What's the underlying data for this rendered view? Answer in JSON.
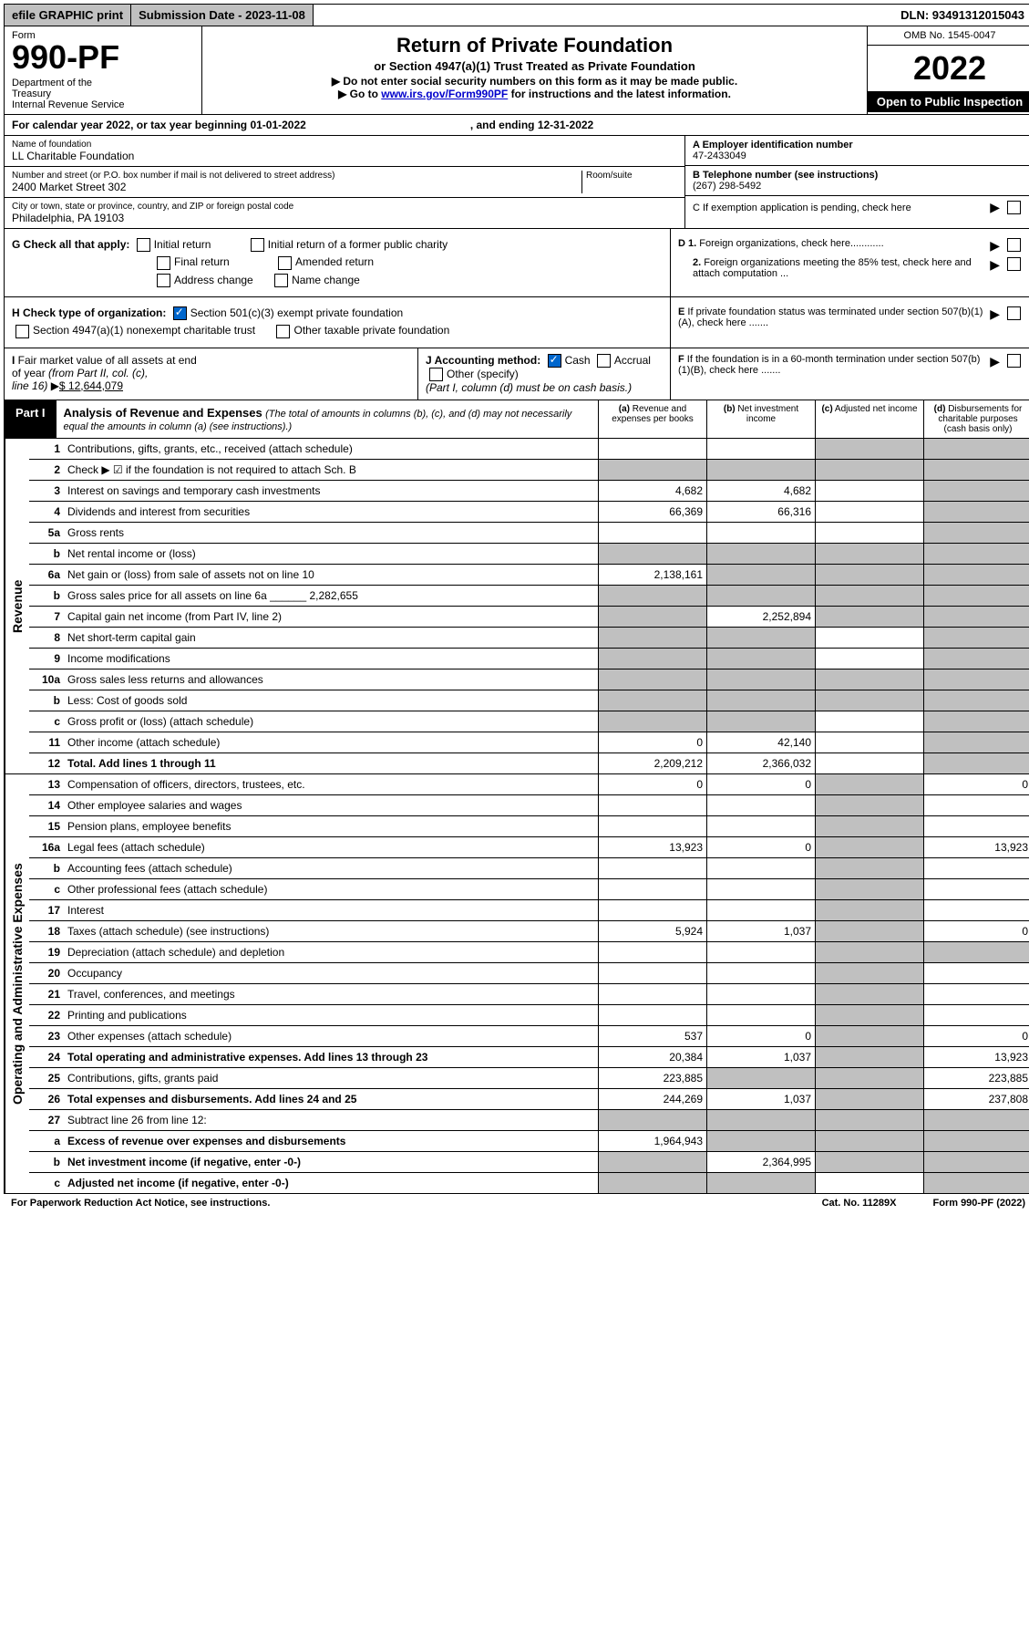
{
  "topbar": {
    "efile": "efile GRAPHIC print",
    "subdate_lbl": "Submission Date - 2023-11-08",
    "dln": "DLN: 93491312015043"
  },
  "header": {
    "form_lbl": "Form",
    "form_num": "990-PF",
    "dept": "Department of the Treasury\nInternal Revenue Service",
    "title": "Return of Private Foundation",
    "subtitle": "or Section 4947(a)(1) Trust Treated as Private Foundation",
    "note1": "▶ Do not enter social security numbers on this form as it may be made public.",
    "note2_pre": "▶ Go to ",
    "note2_link": "www.irs.gov/Form990PF",
    "note2_post": " for instructions and the latest information.",
    "omb": "OMB No. 1545-0047",
    "year": "2022",
    "inspect": "Open to Public Inspection"
  },
  "calyear": {
    "pre": "For calendar year 2022, or tax year beginning 01-01-2022",
    "mid": ", and ending 12-31-2022"
  },
  "info": {
    "name_lbl": "Name of foundation",
    "name": "LL Charitable Foundation",
    "addr_lbl": "Number and street (or P.O. box number if mail is not delivered to street address)",
    "addr": "2400 Market Street 302",
    "room_lbl": "Room/suite",
    "city_lbl": "City or town, state or province, country, and ZIP or foreign postal code",
    "city": "Philadelphia, PA  19103",
    "ein_lbl": "A Employer identification number",
    "ein": "47-2433049",
    "tel_lbl": "B Telephone number (see instructions)",
    "tel": "(267) 298-5492",
    "c": "C If exemption application is pending, check here",
    "d1": "D 1. Foreign organizations, check here............",
    "d2": "2. Foreign organizations meeting the 85% test, check here and attach computation ...",
    "e": "E If private foundation status was terminated under section 507(b)(1)(A), check here .......",
    "f": "F If the foundation is in a 60-month termination under section 507(b)(1)(B), check here ......."
  },
  "checks": {
    "g_lbl": "G Check all that apply:",
    "initial": "Initial return",
    "initial_former": "Initial return of a former public charity",
    "final": "Final return",
    "amended": "Amended return",
    "addr_chg": "Address change",
    "name_chg": "Name change",
    "h_lbl": "H Check type of organization:",
    "h1": "Section 501(c)(3) exempt private foundation",
    "h2": "Section 4947(a)(1) nonexempt charitable trust",
    "h3": "Other taxable private foundation",
    "i_lbl": "I Fair market value of all assets at end of year (from Part II, col. (c), line 16)",
    "i_val": "$  12,644,079",
    "j_lbl": "J Accounting method:",
    "j_cash": "Cash",
    "j_accrual": "Accrual",
    "j_other": "Other (specify)",
    "j_note": "(Part I, column (d) must be on cash basis.)"
  },
  "partI": {
    "label": "Part I",
    "title": "Analysis of Revenue and Expenses",
    "note": "(The total of amounts in columns (b), (c), and (d) may not necessarily equal the amounts in column (a) (see instructions).)",
    "col_a": "(a) Revenue and expenses per books",
    "col_b": "(b) Net investment income",
    "col_c": "(c) Adjusted net income",
    "col_d": "(d) Disbursements for charitable purposes (cash basis only)"
  },
  "revenue_lbl": "Revenue",
  "expenses_lbl": "Operating and Administrative Expenses",
  "rows": [
    {
      "n": "1",
      "d": "Contributions, gifts, grants, etc., received (attach schedule)",
      "a": "",
      "b": "",
      "c": "shaded",
      "dcol": "shaded"
    },
    {
      "n": "2",
      "d": "Check ▶ ☑ if the foundation is not required to attach Sch. B",
      "a": "shaded",
      "b": "shaded",
      "c": "shaded",
      "dcol": "shaded"
    },
    {
      "n": "3",
      "d": "Interest on savings and temporary cash investments",
      "a": "4,682",
      "b": "4,682",
      "c": "",
      "dcol": "shaded"
    },
    {
      "n": "4",
      "d": "Dividends and interest from securities",
      "a": "66,369",
      "b": "66,316",
      "c": "",
      "dcol": "shaded"
    },
    {
      "n": "5a",
      "d": "Gross rents",
      "a": "",
      "b": "",
      "c": "",
      "dcol": "shaded"
    },
    {
      "n": "b",
      "d": "Net rental income or (loss)",
      "a": "shaded",
      "b": "shaded",
      "c": "shaded",
      "dcol": "shaded"
    },
    {
      "n": "6a",
      "d": "Net gain or (loss) from sale of assets not on line 10",
      "a": "2,138,161",
      "b": "shaded",
      "c": "shaded",
      "dcol": "shaded"
    },
    {
      "n": "b",
      "d": "Gross sales price for all assets on line 6a ______ 2,282,655",
      "a": "shaded",
      "b": "shaded",
      "c": "shaded",
      "dcol": "shaded"
    },
    {
      "n": "7",
      "d": "Capital gain net income (from Part IV, line 2)",
      "a": "shaded",
      "b": "2,252,894",
      "c": "shaded",
      "dcol": "shaded"
    },
    {
      "n": "8",
      "d": "Net short-term capital gain",
      "a": "shaded",
      "b": "shaded",
      "c": "",
      "dcol": "shaded"
    },
    {
      "n": "9",
      "d": "Income modifications",
      "a": "shaded",
      "b": "shaded",
      "c": "",
      "dcol": "shaded"
    },
    {
      "n": "10a",
      "d": "Gross sales less returns and allowances",
      "a": "shaded",
      "b": "shaded",
      "c": "shaded",
      "dcol": "shaded"
    },
    {
      "n": "b",
      "d": "Less: Cost of goods sold",
      "a": "shaded",
      "b": "shaded",
      "c": "shaded",
      "dcol": "shaded"
    },
    {
      "n": "c",
      "d": "Gross profit or (loss) (attach schedule)",
      "a": "shaded",
      "b": "shaded",
      "c": "",
      "dcol": "shaded"
    },
    {
      "n": "11",
      "d": "Other income (attach schedule)",
      "a": "0",
      "b": "42,140",
      "c": "",
      "dcol": "shaded"
    },
    {
      "n": "12",
      "d": "Total. Add lines 1 through 11",
      "a": "2,209,212",
      "b": "2,366,032",
      "c": "",
      "dcol": "shaded",
      "bold": true
    }
  ],
  "exp_rows": [
    {
      "n": "13",
      "d": "Compensation of officers, directors, trustees, etc.",
      "a": "0",
      "b": "0",
      "c": "shaded",
      "dcol": "0"
    },
    {
      "n": "14",
      "d": "Other employee salaries and wages",
      "a": "",
      "b": "",
      "c": "shaded",
      "dcol": ""
    },
    {
      "n": "15",
      "d": "Pension plans, employee benefits",
      "a": "",
      "b": "",
      "c": "shaded",
      "dcol": ""
    },
    {
      "n": "16a",
      "d": "Legal fees (attach schedule)",
      "a": "13,923",
      "b": "0",
      "c": "shaded",
      "dcol": "13,923"
    },
    {
      "n": "b",
      "d": "Accounting fees (attach schedule)",
      "a": "",
      "b": "",
      "c": "shaded",
      "dcol": ""
    },
    {
      "n": "c",
      "d": "Other professional fees (attach schedule)",
      "a": "",
      "b": "",
      "c": "shaded",
      "dcol": ""
    },
    {
      "n": "17",
      "d": "Interest",
      "a": "",
      "b": "",
      "c": "shaded",
      "dcol": ""
    },
    {
      "n": "18",
      "d": "Taxes (attach schedule) (see instructions)",
      "a": "5,924",
      "b": "1,037",
      "c": "shaded",
      "dcol": "0"
    },
    {
      "n": "19",
      "d": "Depreciation (attach schedule) and depletion",
      "a": "",
      "b": "",
      "c": "shaded",
      "dcol": "shaded"
    },
    {
      "n": "20",
      "d": "Occupancy",
      "a": "",
      "b": "",
      "c": "shaded",
      "dcol": ""
    },
    {
      "n": "21",
      "d": "Travel, conferences, and meetings",
      "a": "",
      "b": "",
      "c": "shaded",
      "dcol": ""
    },
    {
      "n": "22",
      "d": "Printing and publications",
      "a": "",
      "b": "",
      "c": "shaded",
      "dcol": ""
    },
    {
      "n": "23",
      "d": "Other expenses (attach schedule)",
      "a": "537",
      "b": "0",
      "c": "shaded",
      "dcol": "0"
    },
    {
      "n": "24",
      "d": "Total operating and administrative expenses. Add lines 13 through 23",
      "a": "20,384",
      "b": "1,037",
      "c": "shaded",
      "dcol": "13,923",
      "bold": true
    },
    {
      "n": "25",
      "d": "Contributions, gifts, grants paid",
      "a": "223,885",
      "b": "shaded",
      "c": "shaded",
      "dcol": "223,885"
    },
    {
      "n": "26",
      "d": "Total expenses and disbursements. Add lines 24 and 25",
      "a": "244,269",
      "b": "1,037",
      "c": "shaded",
      "dcol": "237,808",
      "bold": true
    },
    {
      "n": "27",
      "d": "Subtract line 26 from line 12:",
      "a": "shaded",
      "b": "shaded",
      "c": "shaded",
      "dcol": "shaded"
    },
    {
      "n": "a",
      "d": "Excess of revenue over expenses and disbursements",
      "a": "1,964,943",
      "b": "shaded",
      "c": "shaded",
      "dcol": "shaded",
      "bold": true
    },
    {
      "n": "b",
      "d": "Net investment income (if negative, enter -0-)",
      "a": "shaded",
      "b": "2,364,995",
      "c": "shaded",
      "dcol": "shaded",
      "bold": true
    },
    {
      "n": "c",
      "d": "Adjusted net income (if negative, enter -0-)",
      "a": "shaded",
      "b": "shaded",
      "c": "",
      "dcol": "shaded",
      "bold": true
    }
  ],
  "footer": {
    "left": "For Paperwork Reduction Act Notice, see instructions.",
    "mid": "Cat. No. 11289X",
    "right": "Form 990-PF (2022)"
  }
}
